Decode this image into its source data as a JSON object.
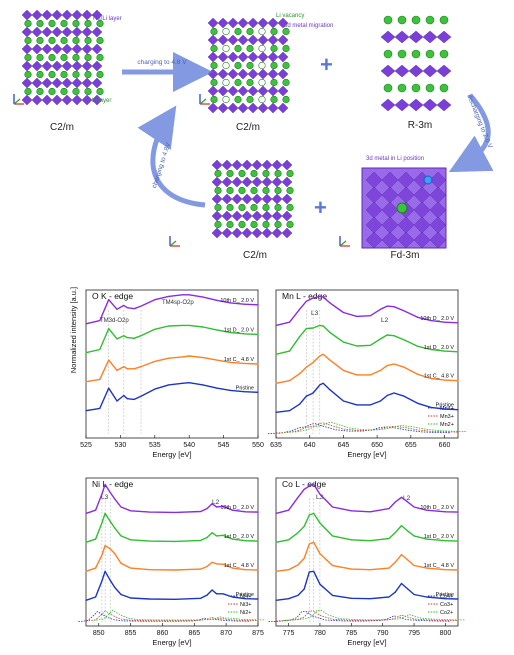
{
  "schematic": {
    "structure_labels": [
      "C2/m",
      "C2/m",
      "R-3m",
      "C2/m",
      "Fd-3m"
    ],
    "layer_labels": {
      "tm_li_layer": "TM/Li layer",
      "li_layer": "Li layer"
    },
    "arrows": {
      "charge_top": "charging to 4.8 V",
      "discharge_right": "discharging to 2.0 V",
      "charge_left": "charging to 4.8V"
    },
    "legends": {
      "li_vacancy": "Li vacancy",
      "metal_migration": "3d metal migration",
      "metal_in_li_position": "3d metal in Li position"
    },
    "colors": {
      "octahedra": "#7a3fd8",
      "li": "#3cc23c",
      "arrow": "#5a78d8",
      "vacancy": "#ffffff"
    }
  },
  "y_axis_label": "Normalized intensity [a.u.]",
  "x_axis_label": "Energy [eV]",
  "colors": {
    "10th D 2.0 V": "#8a2be2",
    "1st D 2.0 V": "#2fbf2f",
    "1st C 4.8 V": "#ff7f24",
    "Pristine": "#1c35c6"
  },
  "chart_data": [
    {
      "type": "line",
      "title": "O K - edge",
      "xlabel": "Energy [eV]",
      "ylabel": "Normalized intensity [a.u.]",
      "xlim": [
        525,
        550
      ],
      "xticks": [
        "525",
        "530",
        "535",
        "540",
        "545",
        "550"
      ],
      "grid": false,
      "annotations": [
        "TM3d-O2p",
        "TM4sp-O2p"
      ],
      "series": [
        {
          "name": "10th D_ 2.0 V",
          "x": [
            525,
            527,
            528.3,
            529.5,
            530.5,
            531,
            532,
            533,
            535,
            537,
            539,
            540,
            542,
            544,
            546,
            548,
            550
          ],
          "y": [
            0.15,
            0.25,
            0.9,
            0.6,
            0.72,
            0.65,
            0.62,
            0.7,
            0.9,
            1.0,
            1.05,
            1.05,
            0.98,
            0.88,
            0.8,
            0.76,
            0.74
          ]
        },
        {
          "name": "1st D_ 2.0 V",
          "x": [
            525,
            527,
            528.3,
            529.5,
            530.5,
            531,
            532,
            533,
            535,
            537,
            539,
            540,
            542,
            544,
            546,
            548,
            550
          ],
          "y": [
            0.15,
            0.25,
            0.9,
            0.58,
            0.68,
            0.62,
            0.6,
            0.68,
            0.88,
            0.98,
            1.0,
            1.0,
            0.95,
            0.86,
            0.78,
            0.74,
            0.72
          ]
        },
        {
          "name": "1st C_ 4.8 V",
          "x": [
            525,
            527,
            528.3,
            529.5,
            530.5,
            531,
            532,
            533,
            535,
            537,
            539,
            540,
            542,
            544,
            546,
            548,
            550
          ],
          "y": [
            0.15,
            0.22,
            0.82,
            0.5,
            0.62,
            0.55,
            0.55,
            0.62,
            0.78,
            0.88,
            0.92,
            0.95,
            0.9,
            0.82,
            0.75,
            0.72,
            0.7
          ]
        },
        {
          "name": "Pristine",
          "x": [
            525,
            527,
            528.3,
            529.5,
            530.5,
            531,
            532,
            533,
            535,
            537,
            539,
            540,
            542,
            544,
            546,
            548,
            550
          ],
          "y": [
            0.15,
            0.22,
            0.85,
            0.45,
            0.62,
            0.52,
            0.5,
            0.6,
            0.82,
            0.95,
            1.0,
            1.02,
            0.95,
            0.85,
            0.78,
            0.74,
            0.72
          ]
        }
      ],
      "labels": [
        "10th D_ 2.0 V",
        "1st D_ 2.0 V",
        "1st C_ 4.8 V",
        "Pristine"
      ]
    },
    {
      "type": "line",
      "title": "Mn L - edge",
      "xlabel": "Energy [eV]",
      "xlim": [
        635,
        662
      ],
      "xticks": [
        "635",
        "640",
        "645",
        "650",
        "655",
        "660"
      ],
      "annotations": [
        "L3",
        "L2"
      ],
      "legend": [
        "Mn4+",
        "Mn3+",
        "Mn2+"
      ],
      "legend_position": "bottom-right",
      "series": [
        {
          "name": "10th D_ 2.0 V",
          "x": [
            635,
            637,
            638.5,
            639.5,
            640.5,
            641.5,
            642,
            643,
            645,
            647,
            649,
            650.5,
            651.5,
            652.5,
            654,
            656,
            658,
            660,
            662
          ],
          "y": [
            0.1,
            0.2,
            0.6,
            0.85,
            0.95,
            1.0,
            0.98,
            0.8,
            0.5,
            0.38,
            0.4,
            0.6,
            0.7,
            0.68,
            0.55,
            0.35,
            0.25,
            0.2,
            0.18
          ]
        },
        {
          "name": "1st D_ 2.0 V",
          "x": [
            635,
            637,
            638.5,
            639.5,
            640.5,
            641.5,
            642,
            643,
            645,
            647,
            649,
            650.5,
            651.5,
            652.5,
            654,
            656,
            658,
            660,
            662
          ],
          "y": [
            0.1,
            0.2,
            0.65,
            0.9,
            0.92,
            1.0,
            0.98,
            0.78,
            0.48,
            0.36,
            0.38,
            0.58,
            0.7,
            0.68,
            0.55,
            0.35,
            0.25,
            0.2,
            0.18
          ]
        },
        {
          "name": "1st C_ 4.8 V",
          "x": [
            635,
            637,
            638.5,
            639.5,
            640.5,
            641.5,
            642,
            643,
            645,
            647,
            649,
            650.5,
            651.5,
            652.5,
            654,
            656,
            658,
            660,
            662
          ],
          "y": [
            0.1,
            0.18,
            0.4,
            0.6,
            0.75,
            0.95,
            1.0,
            0.82,
            0.5,
            0.36,
            0.36,
            0.5,
            0.65,
            0.7,
            0.6,
            0.38,
            0.25,
            0.2,
            0.18
          ]
        },
        {
          "name": "Pristine",
          "x": [
            635,
            637,
            638.5,
            639.5,
            640.5,
            641.5,
            642,
            643,
            645,
            647,
            649,
            650.5,
            651.5,
            652.5,
            654,
            656,
            658,
            660,
            662
          ],
          "y": [
            0.1,
            0.15,
            0.35,
            0.6,
            0.7,
            0.95,
            1.0,
            0.8,
            0.45,
            0.33,
            0.33,
            0.45,
            0.62,
            0.7,
            0.6,
            0.38,
            0.25,
            0.2,
            0.18
          ]
        }
      ],
      "labels": [
        "10th D_ 2.0 V",
        "1st D_ 2.0 V",
        "1st C_ 4.8 V",
        "Pristine"
      ]
    },
    {
      "type": "line",
      "title": "Ni L - edge",
      "xlabel": "Energy [eV]",
      "xlim": [
        848,
        875
      ],
      "xticks": [
        "850",
        "855",
        "860",
        "865",
        "870",
        "875"
      ],
      "annotations": [
        "L3",
        "L2"
      ],
      "legend": [
        "Ni4+",
        "Ni3+",
        "Ni2+"
      ],
      "legend_position": "bottom-right",
      "series": [
        {
          "name": "10th D_ 2.0 V",
          "x": [
            848,
            849.5,
            850.5,
            851,
            851.8,
            852.5,
            853.5,
            855,
            858,
            862,
            866,
            867,
            867.8,
            868.5,
            869.5,
            871,
            873,
            875
          ],
          "y": [
            0.1,
            0.2,
            0.7,
            1.0,
            0.75,
            0.55,
            0.3,
            0.18,
            0.14,
            0.13,
            0.16,
            0.25,
            0.4,
            0.3,
            0.32,
            0.2,
            0.15,
            0.14
          ]
        },
        {
          "name": "1st D_ 2.0 V",
          "x": [
            848,
            849.5,
            850.5,
            851,
            851.8,
            852.5,
            853.5,
            855,
            858,
            862,
            866,
            867,
            867.8,
            868.5,
            869.5,
            871,
            873,
            875
          ],
          "y": [
            0.1,
            0.2,
            0.7,
            1.0,
            0.75,
            0.55,
            0.3,
            0.18,
            0.14,
            0.13,
            0.16,
            0.25,
            0.4,
            0.3,
            0.32,
            0.2,
            0.15,
            0.14
          ]
        },
        {
          "name": "1st C_ 4.8 V",
          "x": [
            848,
            849.5,
            850.5,
            851,
            851.8,
            852.5,
            853.5,
            855,
            858,
            862,
            866,
            867,
            867.8,
            868.5,
            869.5,
            871,
            873,
            875
          ],
          "y": [
            0.1,
            0.2,
            0.6,
            0.9,
            0.8,
            0.65,
            0.35,
            0.2,
            0.15,
            0.14,
            0.17,
            0.25,
            0.38,
            0.33,
            0.32,
            0.2,
            0.15,
            0.14
          ]
        },
        {
          "name": "Pristine",
          "x": [
            848,
            849.5,
            850.5,
            851,
            851.8,
            852.5,
            853.5,
            855,
            858,
            862,
            866,
            867,
            867.8,
            868.5,
            869.5,
            871,
            873,
            875
          ],
          "y": [
            0.1,
            0.2,
            0.7,
            1.0,
            0.72,
            0.5,
            0.28,
            0.17,
            0.14,
            0.13,
            0.16,
            0.26,
            0.42,
            0.3,
            0.3,
            0.2,
            0.15,
            0.14
          ]
        }
      ],
      "labels": [
        "10th D_ 2.0 V",
        "1st D_ 2.0 V",
        "1st C_ 4.8 V",
        "Pristine"
      ]
    },
    {
      "type": "line",
      "title": "Co L - edge",
      "xlabel": "Energy [eV]",
      "xlim": [
        773,
        802
      ],
      "xticks": [
        "775",
        "780",
        "785",
        "790",
        "795",
        "800"
      ],
      "annotations": [
        "L3",
        "L2"
      ],
      "legend": [
        "Co4+",
        "Co3+",
        "Co2+"
      ],
      "legend_position": "bottom-right",
      "series": [
        {
          "name": "10th D_ 2.0 V",
          "x": [
            773,
            775,
            776.5,
            777.5,
            778.3,
            779,
            780,
            782,
            785,
            788,
            791,
            792,
            793,
            794,
            795,
            797,
            800,
            802
          ],
          "y": [
            0.1,
            0.2,
            0.6,
            0.85,
            0.95,
            1.0,
            0.7,
            0.3,
            0.18,
            0.15,
            0.25,
            0.45,
            0.6,
            0.45,
            0.3,
            0.2,
            0.15,
            0.14
          ]
        },
        {
          "name": "1st D_ 2.0 V",
          "x": [
            773,
            775,
            776.5,
            777.5,
            778.3,
            779,
            780,
            782,
            785,
            788,
            791,
            792,
            793,
            794,
            795,
            797,
            800,
            802
          ],
          "y": [
            0.1,
            0.18,
            0.4,
            0.6,
            0.95,
            1.0,
            0.7,
            0.3,
            0.18,
            0.15,
            0.22,
            0.4,
            0.62,
            0.45,
            0.3,
            0.2,
            0.15,
            0.14
          ]
        },
        {
          "name": "1st C_ 4.8 V",
          "x": [
            773,
            775,
            776.5,
            777.5,
            778.3,
            779,
            780,
            782,
            785,
            788,
            791,
            792,
            793,
            794,
            795,
            797,
            800,
            802
          ],
          "y": [
            0.1,
            0.15,
            0.3,
            0.5,
            0.95,
            1.0,
            0.65,
            0.28,
            0.17,
            0.15,
            0.2,
            0.38,
            0.62,
            0.45,
            0.28,
            0.2,
            0.15,
            0.14
          ]
        },
        {
          "name": "Pristine",
          "x": [
            773,
            775,
            776.5,
            777.5,
            778.3,
            779,
            780,
            782,
            785,
            788,
            791,
            792,
            793,
            794,
            795,
            797,
            800,
            802
          ],
          "y": [
            0.1,
            0.15,
            0.25,
            0.45,
            0.98,
            1.0,
            0.6,
            0.25,
            0.16,
            0.15,
            0.2,
            0.35,
            0.62,
            0.45,
            0.28,
            0.2,
            0.15,
            0.14
          ]
        }
      ],
      "labels": [
        "10th D_ 2.0 V",
        "1st D_ 2.0 V",
        "1st C_ 4.8 V",
        "Pristine"
      ]
    }
  ]
}
